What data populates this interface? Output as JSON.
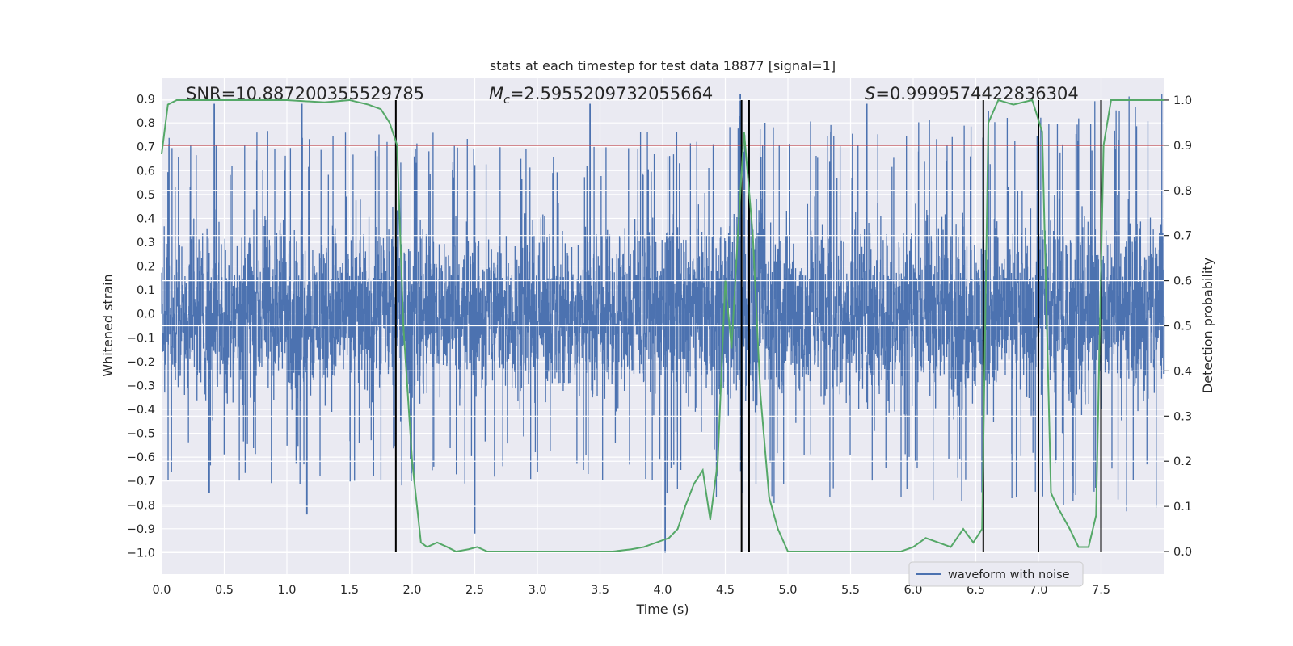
{
  "chart_data": {
    "type": "line",
    "title": "stats at each timestep for test data 18877 [signal=1]",
    "xlabel": "Time (s)",
    "ylabel_left": "Whitened strain",
    "ylabel_right": "Detection probability",
    "xlim": [
      0.0,
      8.0
    ],
    "ylim_left": [
      -1.09,
      0.99
    ],
    "ylim_right": [
      -0.05,
      1.05
    ],
    "x_ticks": [
      "0.0",
      "0.5",
      "1.0",
      "1.5",
      "2.0",
      "2.5",
      "3.0",
      "3.5",
      "4.0",
      "4.5",
      "5.0",
      "5.5",
      "6.0",
      "6.5",
      "7.0",
      "7.5"
    ],
    "y_ticks_left": [
      "−1.0",
      "−0.9",
      "−0.8",
      "−0.7",
      "−0.6",
      "−0.5",
      "−0.4",
      "−0.3",
      "−0.2",
      "−0.1",
      "0.0",
      "0.1",
      "0.2",
      "0.3",
      "0.4",
      "0.5",
      "0.6",
      "0.7",
      "0.8",
      "0.9"
    ],
    "y_ticks_right": [
      "0.0",
      "0.1",
      "0.2",
      "0.3",
      "0.4",
      "0.5",
      "0.6",
      "0.7",
      "0.8",
      "0.9",
      "1.0"
    ],
    "grid": true,
    "legend": {
      "position": "lower-right",
      "entries": [
        "waveform with noise"
      ]
    },
    "annotations": {
      "snr": "SNR=10.887200355529785",
      "mc_symbol": "M",
      "mc_sub": "c",
      "mc_value": "=2.5955209732055664",
      "s_symbol": "S",
      "s_value": "=0.9999574422836304"
    },
    "threshold": {
      "axis": "right",
      "value": 0.9,
      "color": "#c44e52"
    },
    "vertical_markers_x": [
      1.87,
      4.63,
      4.69,
      6.56,
      7.0,
      7.5
    ],
    "waveform": {
      "name": "waveform with noise",
      "color": "#4c72b0",
      "samples": 4096,
      "envelope_upper": [
        [
          0.0,
          0.55
        ],
        [
          1.9,
          0.55
        ],
        [
          3.0,
          0.52
        ],
        [
          4.0,
          0.55
        ],
        [
          4.7,
          0.6
        ],
        [
          6.0,
          0.58
        ],
        [
          7.0,
          0.6
        ],
        [
          7.6,
          0.65
        ],
        [
          8.0,
          0.7
        ]
      ],
      "envelope_lower": [
        [
          0.0,
          -0.5
        ],
        [
          1.9,
          -0.5
        ],
        [
          3.0,
          -0.48
        ],
        [
          4.0,
          -0.52
        ],
        [
          4.7,
          -0.55
        ],
        [
          6.0,
          -0.55
        ],
        [
          7.0,
          -0.55
        ],
        [
          8.0,
          -0.58
        ]
      ],
      "notable_peaks": [
        [
          0.42,
          0.88
        ],
        [
          1.12,
          0.88
        ],
        [
          3.42,
          0.88
        ],
        [
          4.02,
          -1.0
        ],
        [
          4.62,
          0.92
        ],
        [
          5.63,
          0.88
        ],
        [
          6.6,
          0.85
        ],
        [
          2.5,
          -0.92
        ],
        [
          1.16,
          -0.84
        ],
        [
          0.38,
          -0.75
        ]
      ]
    },
    "probability": {
      "color": "#55a868",
      "x": [
        0.0,
        0.05,
        0.12,
        0.3,
        0.6,
        1.0,
        1.3,
        1.5,
        1.65,
        1.75,
        1.82,
        1.88,
        1.93,
        2.0,
        2.07,
        2.12,
        2.2,
        2.28,
        2.35,
        2.45,
        2.52,
        2.6,
        2.8,
        3.0,
        3.3,
        3.6,
        3.75,
        3.85,
        3.95,
        4.05,
        4.12,
        4.18,
        4.25,
        4.32,
        4.38,
        4.44,
        4.5,
        4.55,
        4.6,
        4.65,
        4.72,
        4.78,
        4.85,
        4.92,
        5.0,
        5.1,
        5.3,
        5.6,
        5.9,
        6.0,
        6.1,
        6.2,
        6.3,
        6.4,
        6.48,
        6.55,
        6.6,
        6.68,
        6.8,
        6.95,
        7.03,
        7.1,
        7.15,
        7.25,
        7.32,
        7.4,
        7.46,
        7.52,
        7.58,
        7.7,
        8.0
      ],
      "values": [
        0.88,
        0.99,
        1.0,
        1.0,
        1.0,
        1.0,
        0.995,
        1.0,
        0.99,
        0.98,
        0.95,
        0.9,
        0.5,
        0.2,
        0.02,
        0.01,
        0.02,
        0.01,
        0.0,
        0.005,
        0.01,
        0.0,
        0.0,
        0.0,
        0.0,
        0.0,
        0.005,
        0.01,
        0.02,
        0.03,
        0.05,
        0.1,
        0.15,
        0.18,
        0.07,
        0.2,
        0.6,
        0.45,
        0.7,
        0.93,
        0.7,
        0.35,
        0.12,
        0.05,
        0.0,
        0.0,
        0.0,
        0.0,
        0.0,
        0.01,
        0.03,
        0.02,
        0.01,
        0.05,
        0.02,
        0.05,
        0.95,
        1.0,
        0.99,
        1.0,
        0.93,
        0.13,
        0.1,
        0.05,
        0.01,
        0.01,
        0.08,
        0.9,
        1.0,
        1.0,
        1.0
      ]
    }
  }
}
